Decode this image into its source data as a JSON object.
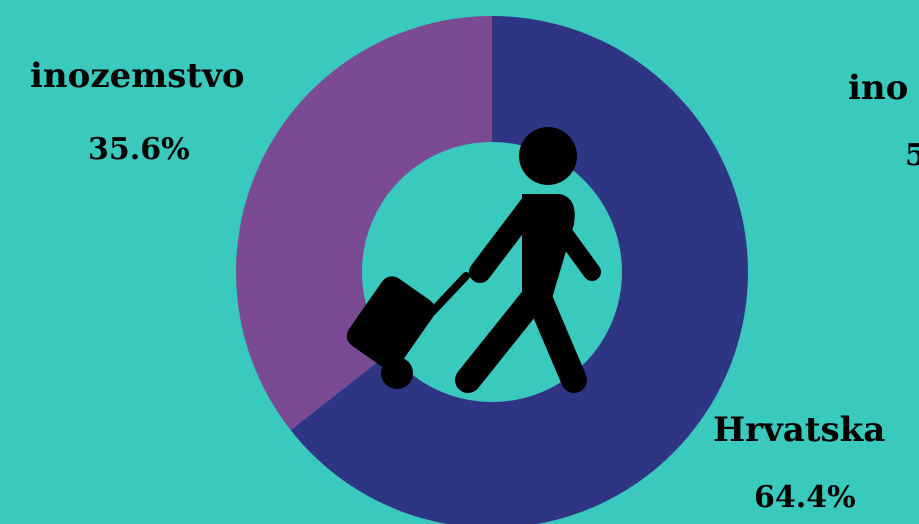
{
  "colors": {
    "background": "#3ac9bd",
    "hole": "#3ac9bd",
    "icon": "#000000"
  },
  "icon": "traveler-with-suitcase-icon",
  "chart_data": {
    "type": "pie",
    "slices": [
      {
        "name": "Hrvatska",
        "value": 64.4,
        "label": "64.4%",
        "color": "#2e3585"
      },
      {
        "name": "inozemstvo",
        "value": 35.6,
        "label": "35.6%",
        "color": "#7a4b93"
      }
    ],
    "right_top_partial_label": {
      "name": "ino",
      "value": "5"
    },
    "legend": "none"
  }
}
